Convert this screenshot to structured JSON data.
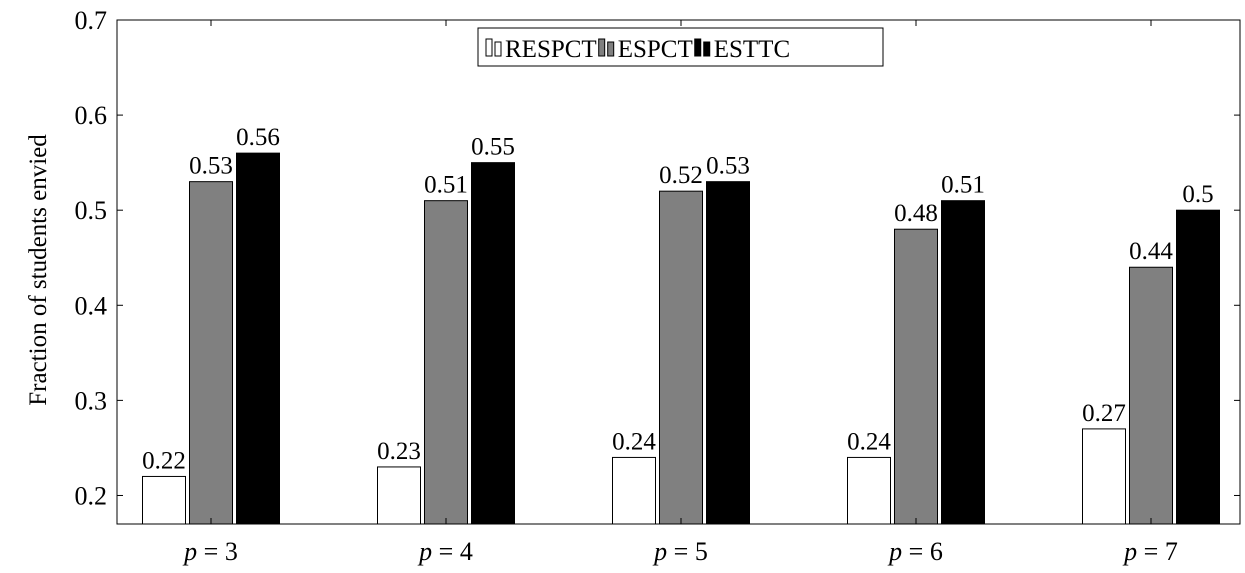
{
  "chart_data": {
    "type": "bar",
    "title": "",
    "xlabel": "",
    "ylabel": "Fraction of students envied",
    "ylim": [
      0.17,
      0.7
    ],
    "yticks": [
      "0.2",
      "0.3",
      "0.4",
      "0.5",
      "0.6",
      "0.7"
    ],
    "categories": [
      {
        "var": "p",
        "rest": " = 3"
      },
      {
        "var": "p",
        "rest": " = 4"
      },
      {
        "var": "p",
        "rest": " = 5"
      },
      {
        "var": "p",
        "rest": " = 6"
      },
      {
        "var": "p",
        "rest": " = 7"
      }
    ],
    "series": [
      {
        "name": "RESPCT",
        "color": "#ffffff",
        "values": [
          0.22,
          0.23,
          0.24,
          0.24,
          0.27
        ],
        "labels": [
          "0.22",
          "0.23",
          "0.24",
          "0.24",
          "0.27"
        ]
      },
      {
        "name": "ESPCT",
        "color": "#808080",
        "values": [
          0.53,
          0.51,
          0.52,
          0.48,
          0.44
        ],
        "labels": [
          "0.53",
          "0.51",
          "0.52",
          "0.48",
          "0.44"
        ]
      },
      {
        "name": "ESTTC",
        "color": "#000000",
        "values": [
          0.56,
          0.55,
          0.53,
          0.51,
          0.5
        ],
        "labels": [
          "0.56",
          "0.55",
          "0.53",
          "0.51",
          "0.5"
        ]
      }
    ],
    "legend_position": "top-center",
    "grid": false
  }
}
